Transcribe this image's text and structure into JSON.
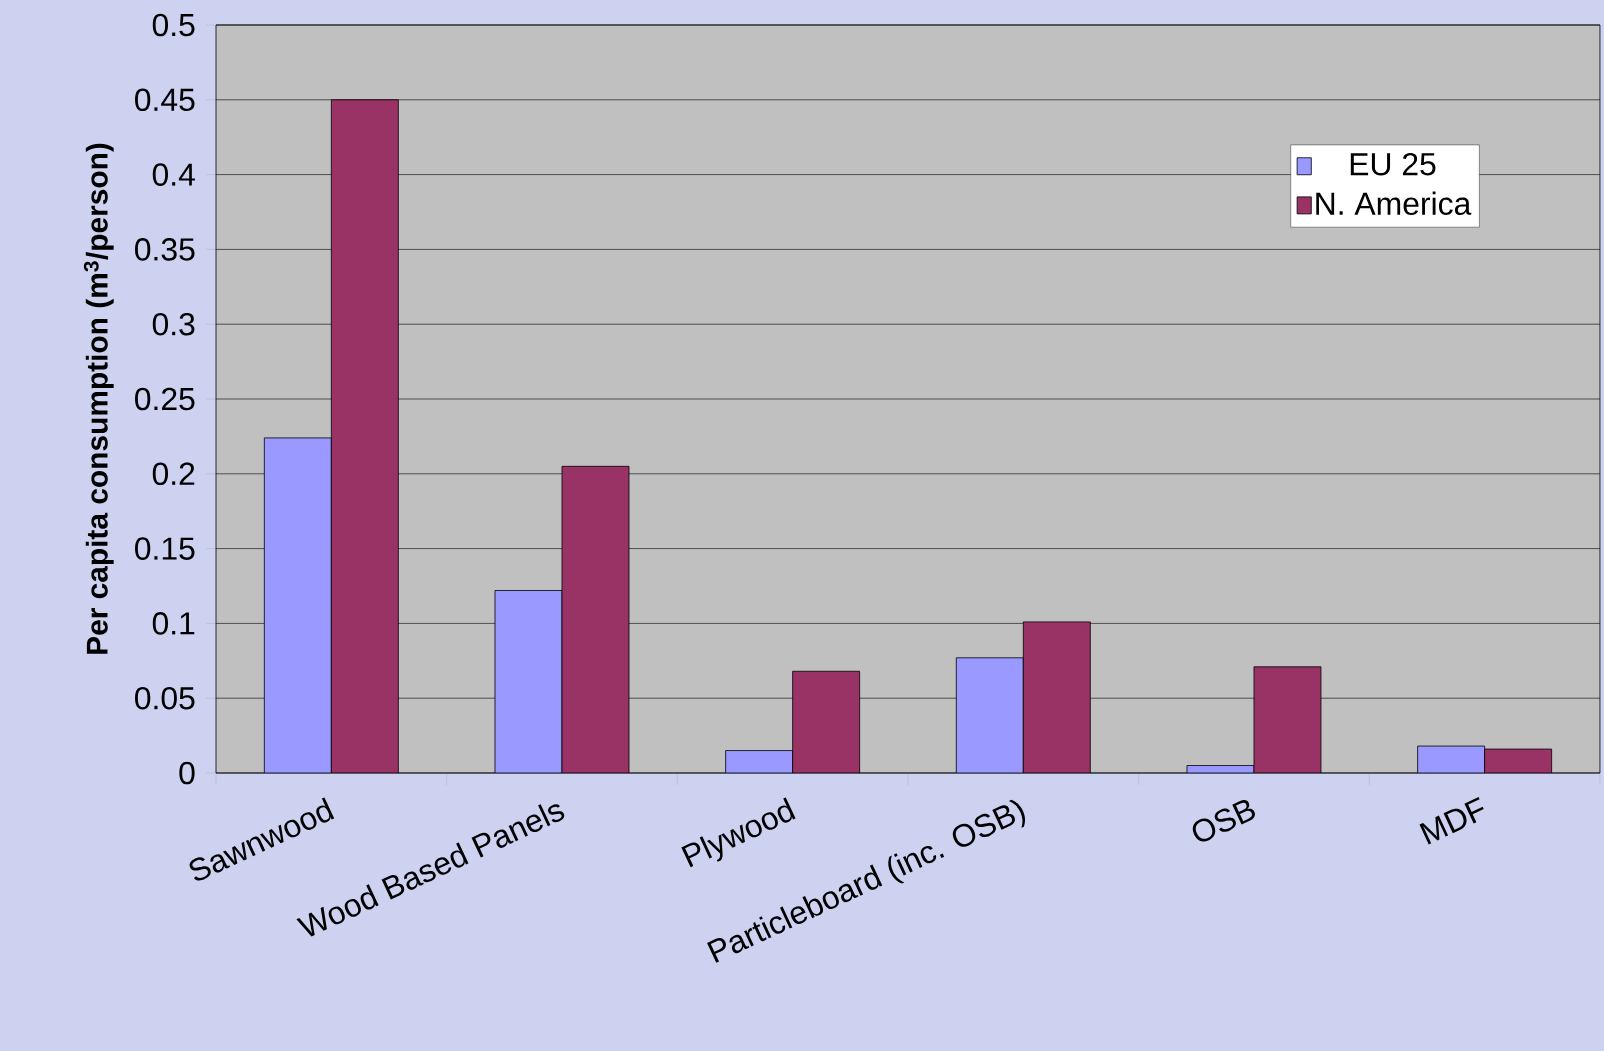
{
  "chart_data": {
    "type": "bar",
    "ylabel": "Per capita consumption (m$^{3}$/person)",
    "categories": [
      "Sawnwood",
      "Wood Based Panels",
      "Plywood",
      "Particleboard (inc. OSB)",
      "OSB",
      "MDF"
    ],
    "series": [
      {
        "name": "EU 25",
        "color": "#9999ff",
        "values": [
          0.224,
          0.122,
          0.015,
          0.077,
          0.005,
          0.018
        ]
      },
      {
        "name": "N. America",
        "color": "#993366",
        "values": [
          0.45,
          0.205,
          0.068,
          0.101,
          0.071,
          0.016
        ]
      }
    ],
    "ylim": [
      0,
      0.5
    ],
    "yticks": [
      0,
      0.05,
      0.1,
      0.15,
      0.2,
      0.25,
      0.3,
      0.35,
      0.4,
      0.45,
      0.5
    ],
    "grid": "y",
    "legend": "top right"
  }
}
